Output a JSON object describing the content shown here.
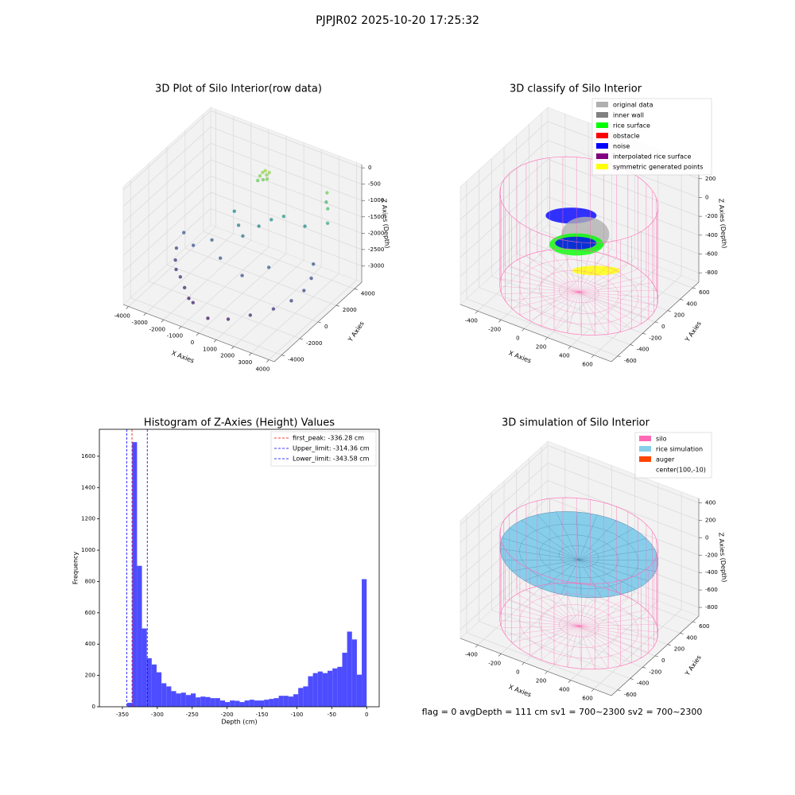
{
  "title": "PJPJR02 2025-10-20 17:25:32",
  "annotation": "flag = 0     avgDepth = 111 cm  sv1 = 700~2300  sv2 = 700~2300",
  "chart_data": [
    {
      "type": "scatter3d",
      "title": "3D Plot of Silo Interior(row data)",
      "x_label": "X Axies",
      "y_label": "Y Axies",
      "z_label": "Z Axies (Depth)",
      "xlim": [
        -4300,
        4300
      ],
      "ylim": [
        -4800,
        4800
      ],
      "zlim": [
        -3500,
        100
      ],
      "xticks": [
        -4000,
        -3000,
        -2000,
        -1000,
        0,
        1000,
        2000,
        3000,
        4000
      ],
      "yticks": [
        -4000,
        -2000,
        0,
        2000,
        4000
      ],
      "zticks": [
        0,
        -500,
        -1000,
        -1500,
        -2000,
        -2500,
        -3000
      ],
      "colormap": "viridis",
      "x": [
        -200,
        -100,
        0,
        -300,
        100,
        -150,
        -400,
        50,
        3000,
        3300,
        3500,
        2800,
        -1500,
        -1000,
        -500,
        0,
        500,
        1000,
        2000,
        -3500,
        -3300,
        -3000,
        -2800,
        -2500,
        -2000,
        -1500,
        -1000,
        0,
        1000,
        2000,
        2800,
        3300,
        3500,
        3400,
        3000,
        -3600,
        -2000,
        -1000,
        500,
        1500
      ],
      "y": [
        2600,
        2700,
        2650,
        2500,
        2750,
        2550,
        2450,
        2600,
        3500,
        3000,
        2600,
        3800,
        2000,
        1500,
        1000,
        1800,
        2200,
        2600,
        3000,
        -500,
        -1000,
        -1500,
        0,
        -2000,
        -2500,
        -3000,
        -3500,
        -3800,
        -3500,
        -3000,
        -2000,
        -1000,
        0,
        1000,
        2000,
        500,
        500,
        -500,
        -1000,
        0
      ],
      "z": [
        -500,
        -450,
        -550,
        -600,
        -480,
        -700,
        -750,
        -650,
        -700,
        -1000,
        -1300,
        -1100,
        -1800,
        -2000,
        -2100,
        -1900,
        -1700,
        -1600,
        -1800,
        -2700,
        -2900,
        -3000,
        -2600,
        -3000,
        -3100,
        -3200,
        -3100,
        -3300,
        -3200,
        -3000,
        -2900,
        -2800,
        -2700,
        -2600,
        -2500,
        -2500,
        -2400,
        -2500,
        -2600,
        -2400
      ]
    },
    {
      "type": "silo3d",
      "title": "3D classify of Silo Interior",
      "x_label": "X Axies",
      "y_label": "Y Axies",
      "z_label": "Z Axies (Depth)",
      "xlim": [
        -550,
        750
      ],
      "ylim": [
        -700,
        700
      ],
      "zlim": [
        -900,
        350
      ],
      "xticks": [
        -400,
        -200,
        0,
        200,
        400,
        600
      ],
      "yticks": [
        -600,
        -400,
        -200,
        0,
        200,
        400,
        600
      ],
      "zticks": [
        -800,
        -600,
        -400,
        -200,
        0,
        200
      ],
      "series": [
        {
          "name": "original data",
          "color": "#b0b0b0"
        },
        {
          "name": "inner wall",
          "color": "#808080"
        },
        {
          "name": "rice surface",
          "color": "#00ff00"
        },
        {
          "name": "obstacle",
          "color": "#ff0000"
        },
        {
          "name": "noise",
          "color": "#0000ff"
        },
        {
          "name": "interpolated rice surface",
          "color": "#800080"
        },
        {
          "name": "symmetric generated points",
          "color": "#ffff00"
        }
      ]
    },
    {
      "type": "histogram",
      "title": "Histogram of Z-Axies (Height) Values",
      "x_label": "Depth (cm)",
      "y_label": "Frequency",
      "color": "#4d4dff",
      "bins": [
        -343,
        -336,
        -329,
        -322,
        -315,
        -308,
        -301,
        -294,
        -287,
        -280,
        -273,
        -266,
        -259,
        -252,
        -245,
        -238,
        -231,
        -224,
        -217,
        -210,
        -203,
        -196,
        -189,
        -182,
        -175,
        -168,
        -161,
        -154,
        -147,
        -140,
        -133,
        -126,
        -119,
        -112,
        -105,
        -98,
        -91,
        -84,
        -77,
        -70,
        -63,
        -56,
        -49,
        -42,
        -35,
        -28,
        -21,
        -14,
        -7,
        0
      ],
      "values": [
        25,
        1690,
        900,
        500,
        310,
        270,
        220,
        150,
        130,
        100,
        85,
        90,
        75,
        85,
        60,
        65,
        62,
        55,
        55,
        40,
        30,
        40,
        38,
        30,
        40,
        45,
        40,
        40,
        45,
        50,
        55,
        70,
        70,
        65,
        80,
        120,
        130,
        195,
        215,
        225,
        215,
        230,
        245,
        255,
        345,
        480,
        430,
        205,
        815
      ],
      "xlim": [
        -383,
        18
      ],
      "ylim": [
        0,
        1772
      ],
      "xticks": [
        -350,
        -300,
        -250,
        -200,
        -150,
        -100,
        -50,
        0
      ],
      "yticks": [
        0,
        200,
        400,
        600,
        800,
        1000,
        1200,
        1400,
        1600
      ],
      "lines": [
        {
          "name": "first_peak: -336.28 cm",
          "value": -336.28,
          "color": "#ff0000"
        },
        {
          "name": "Upper_limit: -314.36 cm",
          "value": -314.36,
          "color": "#0000ff"
        },
        {
          "name": "Lower_limit: -343.58 cm",
          "value": -343.58,
          "color": "#0000ff"
        }
      ]
    },
    {
      "type": "silo3d",
      "title": "3D simulation of Silo Interior",
      "surface": true,
      "x_label": "X Axies",
      "y_label": "Y Axies",
      "z_label": "Z Axies (Depth)",
      "xlim": [
        -550,
        750
      ],
      "ylim": [
        -700,
        700
      ],
      "zlim": [
        -900,
        450
      ],
      "xticks": [
        -400,
        -200,
        0,
        200,
        400,
        600
      ],
      "yticks": [
        -600,
        -400,
        -200,
        0,
        200,
        400,
        600
      ],
      "zticks": [
        -800,
        -600,
        -400,
        -200,
        0,
        200,
        400
      ],
      "series": [
        {
          "name": "silo",
          "color": "#ff69b4"
        },
        {
          "name": "rice simulation",
          "color": "#87ceeb"
        },
        {
          "name": "auger",
          "color": "#ff4500"
        },
        {
          "name": "center(100,-10)"
        }
      ]
    }
  ]
}
